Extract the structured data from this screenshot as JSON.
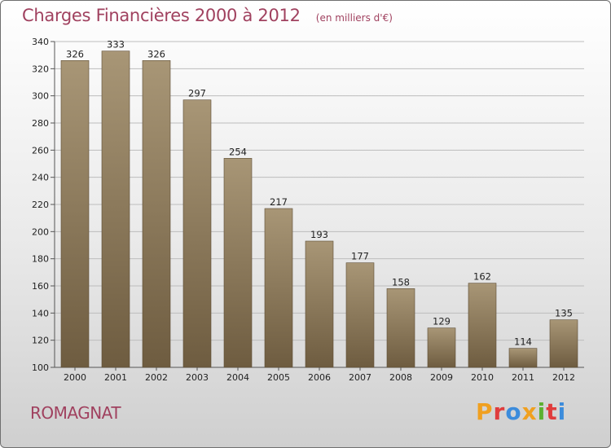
{
  "chart_data": {
    "type": "bar",
    "title": "Charges Financières 2000 à 2012",
    "subtitle": "(en milliers d'€)",
    "categories": [
      "2000",
      "2001",
      "2002",
      "2003",
      "2004",
      "2005",
      "2006",
      "2007",
      "2008",
      "2009",
      "2010",
      "2011",
      "2012"
    ],
    "values": [
      326,
      333,
      326,
      297,
      254,
      217,
      193,
      177,
      158,
      129,
      162,
      114,
      135
    ],
    "ylim": [
      100,
      340
    ],
    "yticks": [
      100,
      120,
      140,
      160,
      180,
      200,
      220,
      240,
      260,
      280,
      300,
      320,
      340
    ],
    "grid": true,
    "xlabel": "",
    "ylabel": "",
    "colors": {
      "bar_top": "#a89676",
      "bar_bottom": "#6e5c40",
      "grid": "#bdbdbd",
      "title": "#a0415f"
    }
  },
  "footer": {
    "location": "ROMAGNAT",
    "brand": "Proxiti",
    "brand_colors": [
      "#f0a020",
      "#e03c3c",
      "#3c8cdc",
      "#f0a020",
      "#5cb030",
      "#e03c3c",
      "#3c8cdc"
    ]
  }
}
